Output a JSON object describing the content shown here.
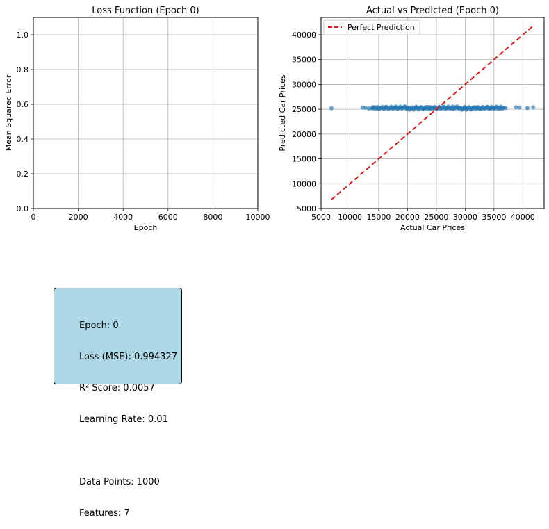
{
  "chart_data": [
    {
      "type": "line",
      "title": "Loss Function (Epoch 0)",
      "xlabel": "Epoch",
      "ylabel": "Mean Squared Error",
      "xlim": [
        0,
        10000
      ],
      "ylim": [
        0,
        1.1
      ],
      "xticks": [
        "0",
        "2000",
        "4000",
        "6000",
        "8000",
        "10000"
      ],
      "yticks": [
        "0.0",
        "0.2",
        "0.4",
        "0.6",
        "0.8",
        "1.0"
      ],
      "grid": true,
      "series": []
    },
    {
      "type": "scatter",
      "title": "Actual vs Predicted (Epoch 0)",
      "xlabel": "Actual Car Prices",
      "ylabel": "Predicted Car Prices",
      "xlim": [
        5000,
        43700
      ],
      "ylim": [
        5000,
        43500
      ],
      "xticks": [
        "5000",
        "10000",
        "15000",
        "20000",
        "25000",
        "30000",
        "35000",
        "40000"
      ],
      "yticks": [
        "5000",
        "10000",
        "15000",
        "20000",
        "25000",
        "30000",
        "35000",
        "40000"
      ],
      "grid": true,
      "legend_position": "top-left",
      "point_color": "#1f77b4",
      "reference_line": {
        "name": "Perfect Prediction",
        "color": "#e41a1c",
        "from": [
          6800,
          6800
        ],
        "to": [
          41800,
          41800
        ]
      },
      "points": [
        [
          6800,
          25200
        ],
        [
          12200,
          25350
        ],
        [
          12700,
          25300
        ],
        [
          13300,
          25150
        ],
        [
          13900,
          25250
        ],
        [
          14400,
          25400
        ],
        [
          14900,
          25100
        ],
        [
          15300,
          25300
        ],
        [
          15800,
          25200
        ],
        [
          16200,
          25450
        ],
        [
          16700,
          25050
        ],
        [
          17100,
          25350
        ],
        [
          17500,
          25200
        ],
        [
          17900,
          25400
        ],
        [
          18300,
          25100
        ],
        [
          18700,
          25300
        ],
        [
          19100,
          25250
        ],
        [
          19500,
          25450
        ],
        [
          19900,
          25150
        ],
        [
          20300,
          25350
        ],
        [
          20700,
          25050
        ],
        [
          21100,
          25300
        ],
        [
          21500,
          25500
        ],
        [
          21900,
          25200
        ],
        [
          22300,
          25400
        ],
        [
          22700,
          25100
        ],
        [
          23100,
          25300
        ],
        [
          23500,
          25450
        ],
        [
          23900,
          25150
        ],
        [
          24300,
          25350
        ],
        [
          24700,
          25250
        ],
        [
          25100,
          25050
        ],
        [
          25500,
          25400
        ],
        [
          25900,
          25200
        ],
        [
          26300,
          25450
        ],
        [
          26700,
          25150
        ],
        [
          27100,
          25350
        ],
        [
          27500,
          25250
        ],
        [
          27900,
          25050
        ],
        [
          28300,
          25400
        ],
        [
          28700,
          25200
        ],
        [
          29100,
          25300
        ],
        [
          29500,
          25100
        ],
        [
          29900,
          25450
        ],
        [
          30300,
          25250
        ],
        [
          30700,
          25350
        ],
        [
          31100,
          25150
        ],
        [
          31500,
          25300
        ],
        [
          31900,
          25400
        ],
        [
          32300,
          25200
        ],
        [
          32700,
          25100
        ],
        [
          33100,
          25350
        ],
        [
          33500,
          25250
        ],
        [
          33900,
          25450
        ],
        [
          34300,
          25150
        ],
        [
          34700,
          25300
        ],
        [
          35100,
          25200
        ],
        [
          35500,
          25400
        ],
        [
          36000,
          25100
        ],
        [
          36500,
          25300
        ],
        [
          37000,
          25250
        ],
        [
          38800,
          25400
        ],
        [
          39400,
          25350
        ],
        [
          40800,
          25250
        ],
        [
          41800,
          25400
        ]
      ]
    }
  ],
  "info": {
    "lines": [
      "Epoch: 0",
      "Loss (MSE): 0.994327",
      "R² Score: 0.0057",
      "Learning Rate: 0.01",
      "",
      "Data Points: 1000",
      "Features: 7"
    ]
  }
}
